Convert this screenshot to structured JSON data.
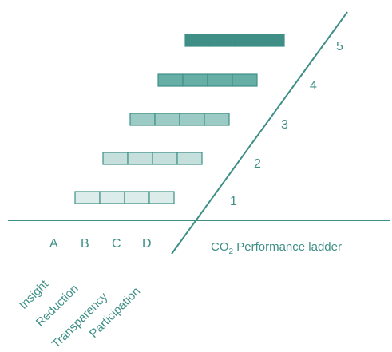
{
  "colors": {
    "line": "#3f8f87",
    "text": "#3f8f87",
    "cell_border": "#3f8f87",
    "levels": [
      "#dcecea",
      "#c4dfdc",
      "#9ccbc5",
      "#67aea6",
      "#3f8f87"
    ]
  },
  "axis": {
    "title_prefix": "CO",
    "title_subscript": "2",
    "title_suffix": " Performance ladder"
  },
  "levels": [
    {
      "label": "1",
      "cells": 4
    },
    {
      "label": "2",
      "cells": 4
    },
    {
      "label": "3",
      "cells": 4
    },
    {
      "label": "4",
      "cells": 4
    },
    {
      "label": "5",
      "cells": 4
    }
  ],
  "columns": [
    {
      "letter": "A",
      "dimension": "Insight"
    },
    {
      "letter": "B",
      "dimension": "Reduction"
    },
    {
      "letter": "C",
      "dimension": "Transparency"
    },
    {
      "letter": "D",
      "dimension": "Participation"
    }
  ]
}
